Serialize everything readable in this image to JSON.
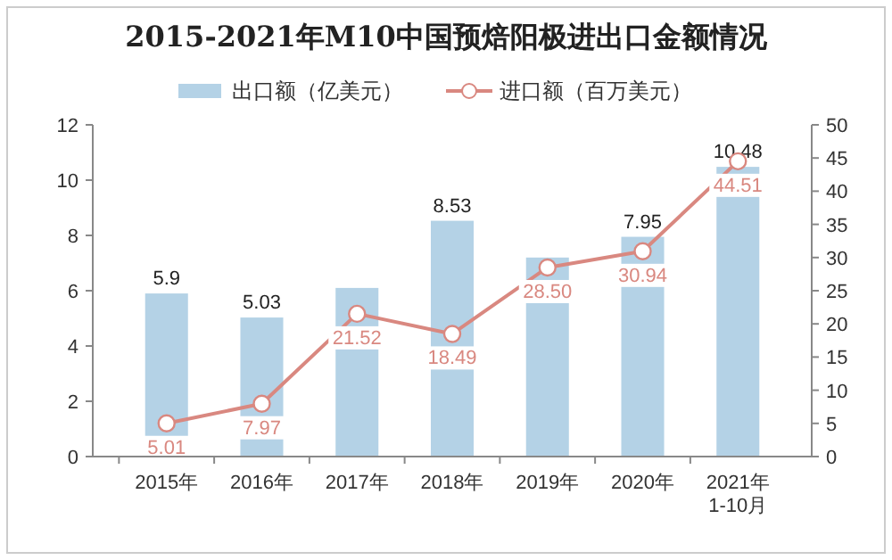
{
  "chart_data": {
    "type": "bar",
    "title": "2015-2021年M10中国预焙阳极进出口金额情况",
    "categories": [
      "2015年",
      "2016年",
      "2017年",
      "2018年",
      "2019年",
      "2020年",
      "2021年\n1-10月"
    ],
    "series": [
      {
        "name": "出口额（亿美元）",
        "color": "#b4d2e6",
        "values": [
          5.9,
          5.03,
          6.1,
          8.53,
          7.2,
          7.95,
          10.48
        ],
        "value_labels": [
          "5.9",
          "5.03",
          null,
          "8.53",
          null,
          "7.95",
          "10.48"
        ]
      },
      {
        "name": "进口额（百万美元）",
        "type": "line",
        "axis": "y2",
        "color": "#d98880",
        "marker": "circle",
        "values": [
          5.01,
          7.97,
          21.52,
          18.49,
          28.5,
          30.94,
          44.51
        ],
        "value_labels": [
          "5.01",
          "7.97",
          "21.52",
          "18.49",
          "28.50",
          "30.94",
          "44.51"
        ]
      }
    ],
    "ylim": [
      0,
      12
    ],
    "yticks": [
      0,
      2,
      4,
      6,
      8,
      10,
      12
    ],
    "y2lim": [
      0,
      50
    ],
    "y2ticks": [
      0,
      5,
      10,
      15,
      20,
      25,
      30,
      35,
      40,
      45,
      50
    ],
    "legend": "top",
    "grid": false
  }
}
